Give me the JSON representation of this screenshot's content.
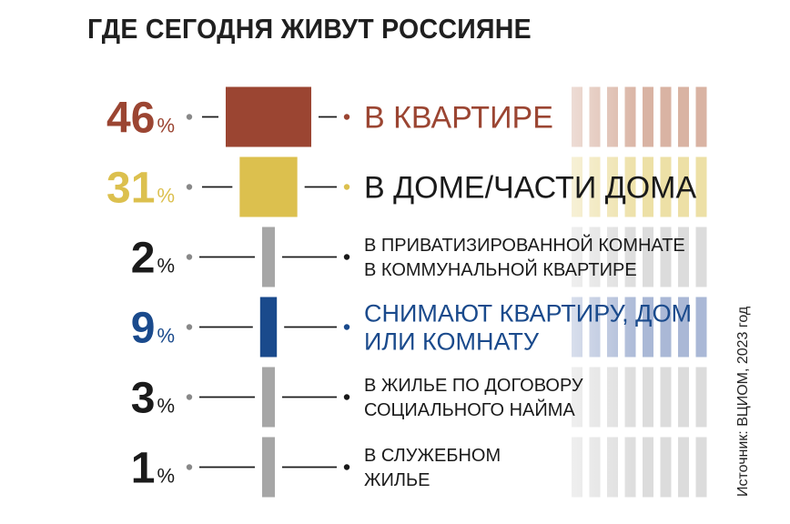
{
  "title": "ГДЕ СЕГОДНЯ ЖИВУТ РОССИЯНЕ",
  "source": "Источник: ВЦИОМ, 2023 год",
  "chart_data": {
    "type": "bar",
    "unit": "%",
    "categories": [
      [
        "В КВАРТИРЕ"
      ],
      [
        "В ДОМЕ/ЧАСТИ ДОМА"
      ],
      [
        "В ПРИВАТИЗИРОВАННОЙ КОМНАТЕ",
        "В КОММУНАЛЬНОЙ КВАРТИРЕ"
      ],
      [
        "СНИМАЮТ КВАРТИРУ, ДОМ",
        "ИЛИ КОМНАТУ"
      ],
      [
        "В ЖИЛЬЕ ПО ДОГОВОРУ",
        "СОЦИАЛЬНОГО НАЙМА"
      ],
      [
        "В СЛУЖЕБНОМ",
        "ЖИЛЬЕ"
      ]
    ],
    "values": [
      46,
      31,
      2,
      9,
      3,
      1
    ],
    "colors": [
      "#9b4532",
      "#dcc04e",
      "#a6a6a6",
      "#1a4a8c",
      "#a6a6a6",
      "#a6a6a6"
    ],
    "stripe_colors": [
      "#d9b3a3",
      "#ede0a6",
      "#dcdcdc",
      "#aab8d6",
      "#dcdcdc",
      "#dcdcdc"
    ]
  }
}
